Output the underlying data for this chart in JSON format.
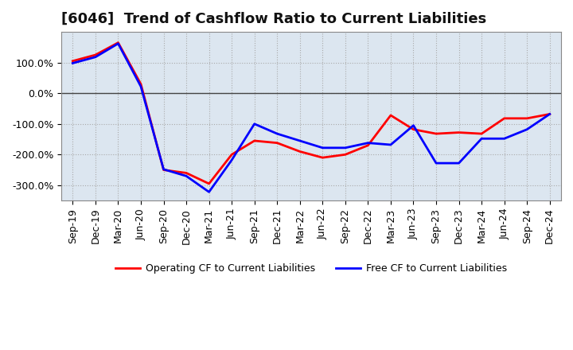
{
  "title": "[6046]  Trend of Cashflow Ratio to Current Liabilities",
  "x_labels": [
    "Sep-19",
    "Dec-19",
    "Mar-20",
    "Jun-20",
    "Sep-20",
    "Dec-20",
    "Mar-21",
    "Jun-21",
    "Sep-21",
    "Dec-21",
    "Mar-22",
    "Jun-22",
    "Sep-22",
    "Dec-22",
    "Mar-23",
    "Jun-23",
    "Sep-23",
    "Dec-23",
    "Mar-24",
    "Jun-24",
    "Sep-24",
    "Dec-24"
  ],
  "operating_cf": [
    105,
    125,
    165,
    30,
    -250,
    -260,
    -295,
    -200,
    -155,
    -162,
    -190,
    -210,
    -200,
    -170,
    -72,
    -118,
    -132,
    -128,
    -132,
    -82,
    -82,
    -68
  ],
  "free_cf": [
    98,
    118,
    162,
    22,
    -248,
    -270,
    -322,
    -218,
    -100,
    -132,
    -155,
    -178,
    -178,
    -162,
    -168,
    -105,
    -228,
    -228,
    -148,
    -148,
    -118,
    -68
  ],
  "operating_color": "#ff0000",
  "free_color": "#0000ff",
  "background_color": "#ffffff",
  "plot_bg_color": "#dce6f0",
  "grid_color": "#aaaaaa",
  "ylim": [
    -350,
    200
  ],
  "yticks": [
    -300,
    -200,
    -100,
    0,
    100
  ],
  "ytick_labels": [
    "-300.0%",
    "-200.0%",
    "-100.0%",
    "0.0%",
    "100.0%"
  ],
  "legend_op": "Operating CF to Current Liabilities",
  "legend_free": "Free CF to Current Liabilities",
  "line_width": 2.0,
  "title_fontsize": 13,
  "tick_fontsize": 9,
  "legend_fontsize": 9
}
